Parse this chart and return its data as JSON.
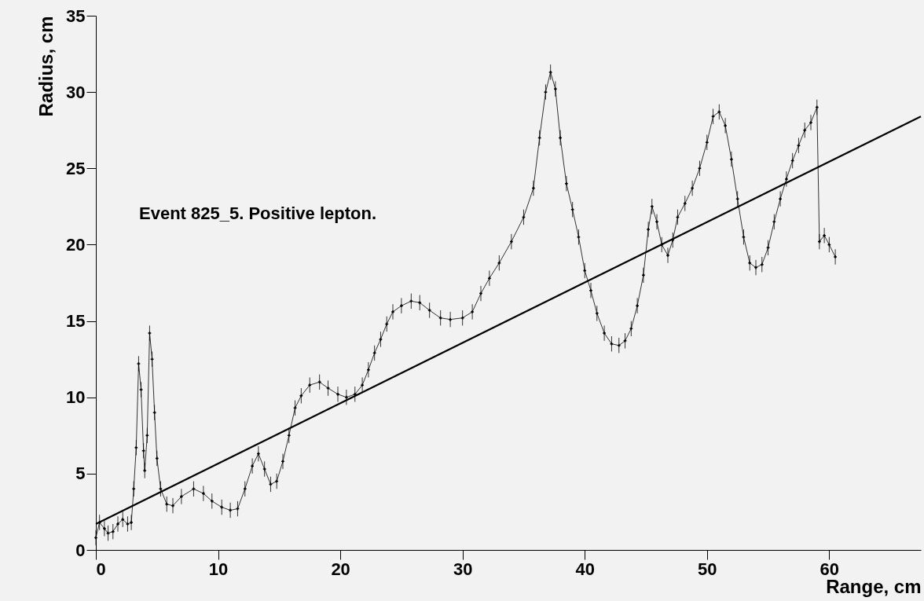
{
  "chart_data": {
    "type": "line",
    "xlabel": "Range,  cm",
    "ylabel": "Radius,  cm",
    "annotations": [
      "Event 825_5.  Positive lepton."
    ],
    "xlim": [
      0,
      67.5
    ],
    "ylim": [
      0,
      35
    ],
    "xticks": [
      0,
      10,
      20,
      30,
      40,
      50,
      60
    ],
    "yticks": [
      0,
      5,
      10,
      15,
      20,
      25,
      30,
      35
    ],
    "grid": false,
    "series": [
      {
        "color": "#000000",
        "marker": "cross",
        "line_style": "solid",
        "x": [
          0,
          0.3,
          0.7,
          1.0,
          1.4,
          1.8,
          2.2,
          2.6,
          2.9,
          3.1,
          3.3,
          3.5,
          3.7,
          3.9,
          4.0,
          4.2,
          4.4,
          4.6,
          4.8,
          5.0,
          5.3,
          5.8,
          6.3,
          7.0,
          8.0,
          8.8,
          9.5,
          10.3,
          11.0,
          11.6,
          12.2,
          12.8,
          13.3,
          13.8,
          14.3,
          14.8,
          15.3,
          15.8,
          16.3,
          16.8,
          17.5,
          18.3,
          19.0,
          19.8,
          20.5,
          21.2,
          21.8,
          22.3,
          22.8,
          23.3,
          23.8,
          24.3,
          25.0,
          25.8,
          26.5,
          27.3,
          28.2,
          29.0,
          30.0,
          30.8,
          31.5,
          32.2,
          33.0,
          34.0,
          35.0,
          35.8,
          36.3,
          36.8,
          37.2,
          37.6,
          38.0,
          38.5,
          39.0,
          39.5,
          40.0,
          40.5,
          41.0,
          41.6,
          42.2,
          42.8,
          43.3,
          43.8,
          44.3,
          44.8,
          45.2,
          45.5,
          45.9,
          46.3,
          46.8,
          47.2,
          47.6,
          48.2,
          48.8,
          49.4,
          50.0,
          50.5,
          51.0,
          51.5,
          52.0,
          52.5,
          53.0,
          53.5,
          54.0,
          54.5,
          55.0,
          55.5,
          56.0,
          56.5,
          57.0,
          57.5,
          58.0,
          58.5,
          59.0,
          59.2,
          59.6,
          60.0,
          60.5
        ],
        "values": [
          0.8,
          1.8,
          1.4,
          1.1,
          1.2,
          1.7,
          2.0,
          1.7,
          1.8,
          4.0,
          6.7,
          12.2,
          10.5,
          6.5,
          5.2,
          7.5,
          14.2,
          12.5,
          9.0,
          6.0,
          4.0,
          3.0,
          2.9,
          3.5,
          4.0,
          3.7,
          3.2,
          2.8,
          2.6,
          2.7,
          4.0,
          5.5,
          6.3,
          5.3,
          4.3,
          4.5,
          5.8,
          7.5,
          9.3,
          10.1,
          10.8,
          11.0,
          10.6,
          10.2,
          10.0,
          10.2,
          10.8,
          11.8,
          12.9,
          13.8,
          14.8,
          15.6,
          16.0,
          16.3,
          16.2,
          15.7,
          15.2,
          15.1,
          15.2,
          15.6,
          16.8,
          17.8,
          18.8,
          20.2,
          21.8,
          23.7,
          27.0,
          30.0,
          31.3,
          30.2,
          27.0,
          24.0,
          22.3,
          20.5,
          18.3,
          17.0,
          15.5,
          14.2,
          13.5,
          13.4,
          13.7,
          14.5,
          16.0,
          18.0,
          21.0,
          22.5,
          21.5,
          20.0,
          19.3,
          20.3,
          21.8,
          22.7,
          23.7,
          25.0,
          26.7,
          28.4,
          28.7,
          27.8,
          25.6,
          23.0,
          20.5,
          18.8,
          18.5,
          18.7,
          19.8,
          21.5,
          23.0,
          24.3,
          25.5,
          26.5,
          27.5,
          28.0,
          29.0,
          20.2,
          20.6,
          20.0,
          19.2
        ],
        "errors": [
          0.5,
          0.5,
          0.5,
          0.5,
          0.5,
          0.5,
          0.5,
          0.5,
          0.5,
          0.5,
          0.5,
          0.5,
          0.5,
          0.5,
          0.5,
          0.5,
          0.5,
          0.5,
          0.5,
          0.5,
          0.5,
          0.5,
          0.5,
          0.5,
          0.5,
          0.5,
          0.5,
          0.5,
          0.5,
          0.5,
          0.5,
          0.5,
          0.5,
          0.5,
          0.5,
          0.5,
          0.5,
          0.5,
          0.5,
          0.5,
          0.5,
          0.5,
          0.5,
          0.5,
          0.5,
          0.5,
          0.5,
          0.5,
          0.5,
          0.5,
          0.5,
          0.5,
          0.5,
          0.5,
          0.5,
          0.5,
          0.5,
          0.5,
          0.5,
          0.5,
          0.5,
          0.5,
          0.5,
          0.5,
          0.5,
          0.5,
          0.5,
          0.5,
          0.5,
          0.5,
          0.5,
          0.5,
          0.5,
          0.5,
          0.5,
          0.5,
          0.5,
          0.5,
          0.5,
          0.5,
          0.5,
          0.5,
          0.5,
          0.5,
          0.5,
          0.5,
          0.5,
          0.5,
          0.5,
          0.5,
          0.5,
          0.5,
          0.5,
          0.5,
          0.5,
          0.5,
          0.5,
          0.5,
          0.5,
          0.5,
          0.5,
          0.5,
          0.5,
          0.5,
          0.5,
          0.5,
          0.5,
          0.5,
          0.5,
          0.5,
          0.5,
          0.5,
          0.5,
          0.5,
          0.5,
          0.5,
          0.5
        ]
      },
      {
        "color": "#000000",
        "marker": "none",
        "line_style": "solid",
        "x": [
          0,
          67.5
        ],
        "values": [
          1.7,
          28.4
        ]
      }
    ]
  }
}
